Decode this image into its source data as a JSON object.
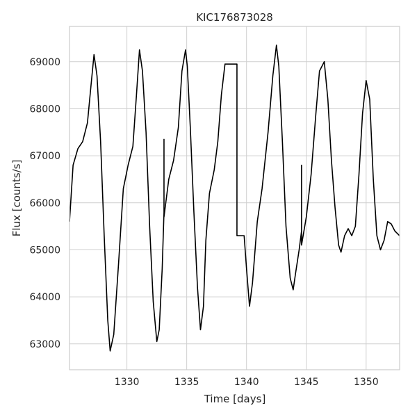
{
  "chart_data": {
    "type": "line",
    "title": "KIC176873028",
    "xlabel": "Time [days]",
    "ylabel": "Flux [counts/s]",
    "xlim": [
      1325.2,
      1352.8
    ],
    "ylim": [
      62450,
      69750
    ],
    "xticks": [
      1330,
      1335,
      1340,
      1345,
      1350
    ],
    "yticks": [
      63000,
      64000,
      65000,
      66000,
      67000,
      68000,
      69000
    ],
    "xtick_labels": [
      "1330",
      "1335",
      "1340",
      "1345",
      "1350"
    ],
    "ytick_labels": [
      "63000",
      "64000",
      "65000",
      "66000",
      "67000",
      "68000",
      "69000"
    ],
    "grid": true,
    "line_color": "#000000",
    "grid_color": "#cfcfcf",
    "series": [
      {
        "x": [
          1325.2,
          1325.5,
          1325.9,
          1326.3,
          1326.7,
          1327.0,
          1327.25,
          1327.5,
          1327.8,
          1328.1,
          1328.4,
          1328.6,
          1328.9,
          1329.3,
          1329.7,
          1330.1,
          1330.5,
          1330.8,
          1331.05,
          1331.3,
          1331.6,
          1331.9,
          1332.2,
          1332.5,
          1332.7,
          1332.95,
          1333.1,
          1333.1,
          1333.1,
          1333.5,
          1333.9,
          1334.3,
          1334.6,
          1334.9,
          1335.05,
          1335.3,
          1335.6,
          1335.9,
          1336.15,
          1336.4,
          1336.6,
          1336.9,
          1337.3,
          1337.6,
          1337.9,
          1338.2,
          1338.55,
          1338.55,
          1339.2,
          1339.2,
          1339.8,
          1339.8,
          1340.0,
          1340.25,
          1340.5,
          1340.9,
          1341.3,
          1341.8,
          1342.2,
          1342.5,
          1342.7,
          1343.0,
          1343.3,
          1343.65,
          1343.9,
          1344.1,
          1344.4,
          1344.6,
          1344.6,
          1344.6,
          1345.0,
          1345.4,
          1345.8,
          1346.1,
          1346.5,
          1346.8,
          1347.1,
          1347.4,
          1347.7,
          1347.9,
          1348.2,
          1348.5,
          1348.8,
          1349.1,
          1349.4,
          1349.7,
          1350.0,
          1350.3,
          1350.6,
          1350.9,
          1351.2,
          1351.5,
          1351.8,
          1352.1,
          1352.4,
          1352.8
        ],
        "y": [
          65600,
          66800,
          67150,
          67300,
          67700,
          68500,
          69150,
          68700,
          67300,
          65300,
          63500,
          62850,
          63200,
          64700,
          66300,
          66800,
          67200,
          68300,
          69250,
          68800,
          67500,
          65500,
          63900,
          63050,
          63300,
          64600,
          65800,
          67350,
          65700,
          66500,
          66900,
          67600,
          68800,
          69250,
          68900,
          67600,
          65800,
          64200,
          63300,
          63800,
          65200,
          66200,
          66700,
          67300,
          68300,
          68950,
          68950,
          68950,
          68950,
          65300,
          65300,
          65300,
          64600,
          63800,
          64300,
          65600,
          66300,
          67500,
          68700,
          69350,
          68900,
          67300,
          65500,
          64400,
          64150,
          64500,
          65000,
          65400,
          66800,
          65100,
          65700,
          66600,
          67900,
          68800,
          69000,
          68200,
          66900,
          65900,
          65100,
          64950,
          65300,
          65450,
          65300,
          65500,
          66600,
          67900,
          68600,
          68200,
          66500,
          65300,
          65000,
          65200,
          65600,
          65550,
          65400,
          65300
        ]
      }
    ]
  }
}
